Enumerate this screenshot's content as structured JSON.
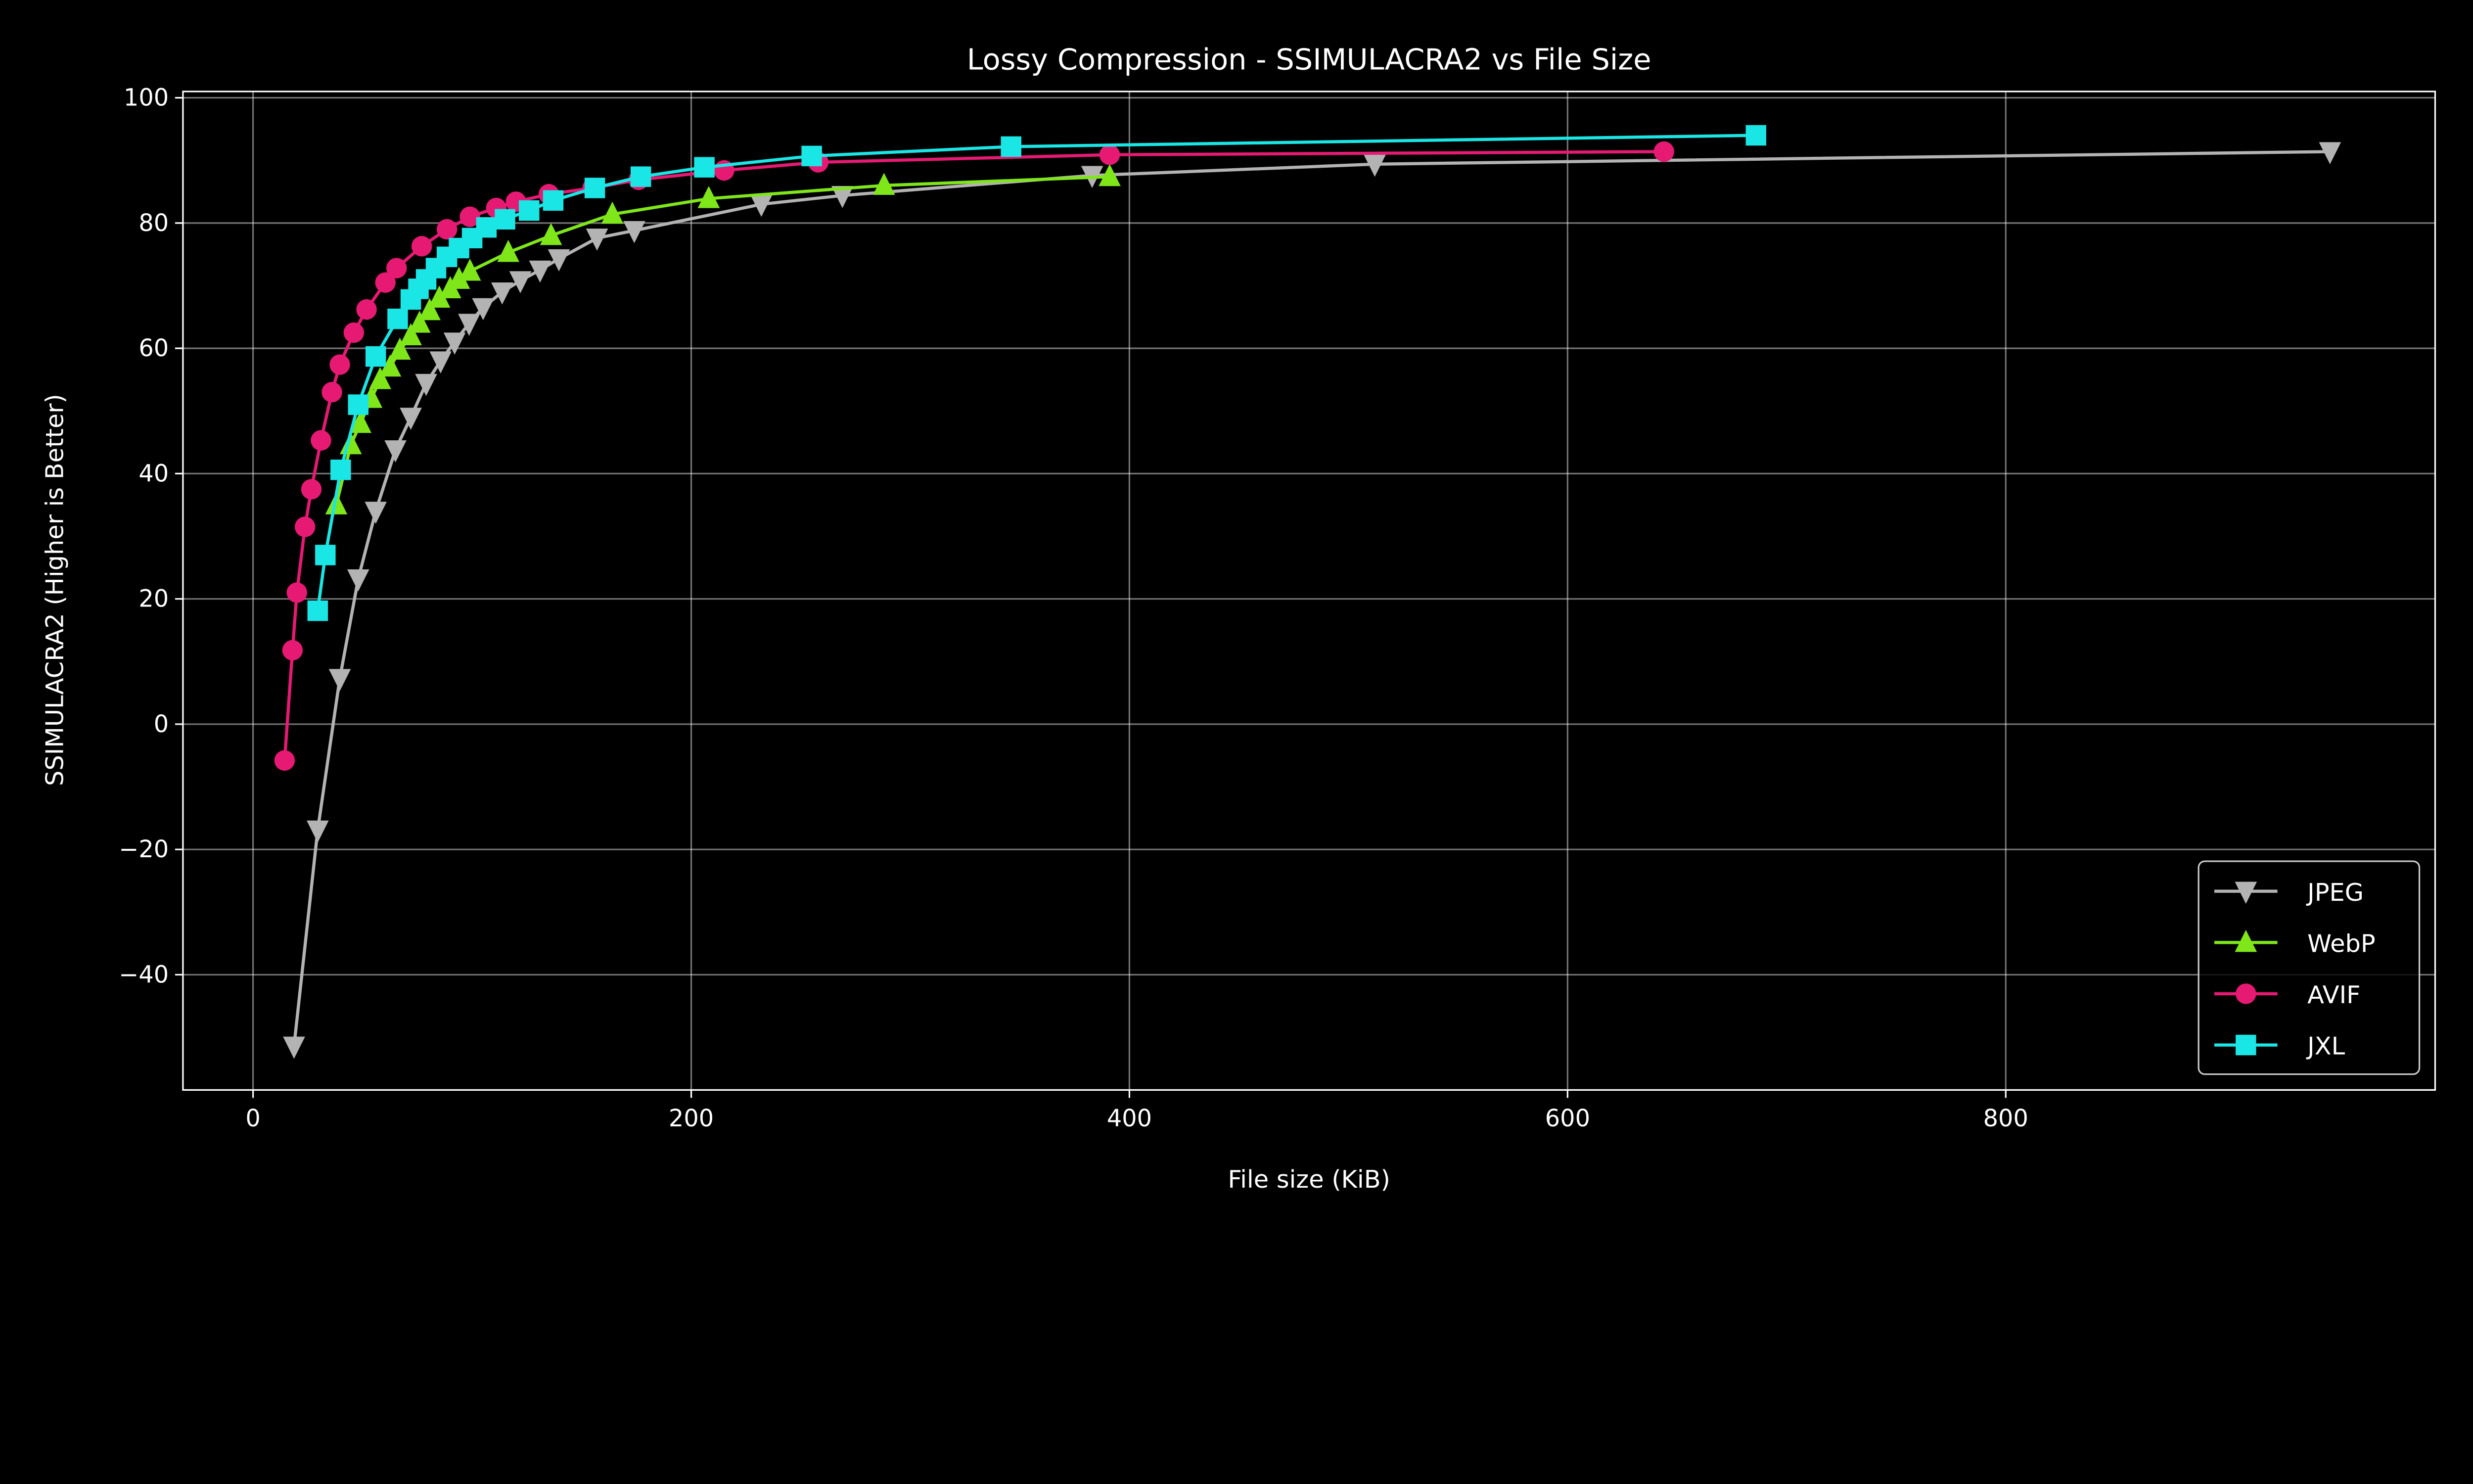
{
  "chart_data": {
    "type": "line",
    "title": "Lossy Compression - SSIMULACRA2 vs File Size",
    "xlabel": "File size (KiB)",
    "ylabel": "SSIMULACRA2 (Higher is Better)",
    "xlim": [
      -32,
      996
    ],
    "ylim": [
      -58.4,
      101
    ],
    "grid": true,
    "legend_position": "lower-right",
    "background": "#000000",
    "x_ticks": [
      {
        "value": 0,
        "label": "0"
      },
      {
        "value": 200,
        "label": "200"
      },
      {
        "value": 400,
        "label": "400"
      },
      {
        "value": 600,
        "label": "600"
      },
      {
        "value": 800,
        "label": "800"
      }
    ],
    "y_ticks": [
      {
        "value": -40,
        "label": "−40"
      },
      {
        "value": -20,
        "label": "−20"
      },
      {
        "value": 0,
        "label": "0"
      },
      {
        "value": 20,
        "label": "20"
      },
      {
        "value": 40,
        "label": "40"
      },
      {
        "value": 60,
        "label": "60"
      },
      {
        "value": 80,
        "label": "80"
      },
      {
        "value": 100,
        "label": "100"
      }
    ],
    "series": [
      {
        "name": "JPEG",
        "color": "#b3b3b3",
        "marker": "triangle-down",
        "x": [
          18.7,
          29.5,
          39.6,
          48,
          56,
          65,
          72,
          79,
          85.6,
          92,
          98.6,
          105,
          113.7,
          122,
          131,
          139.6,
          157,
          174,
          232,
          269,
          383,
          512,
          948
        ],
        "y": [
          -51.4,
          -16.9,
          7.3,
          23.2,
          34,
          43.8,
          49,
          54.4,
          58,
          61,
          64,
          66.5,
          69,
          70.8,
          72.5,
          74.3,
          77.6,
          78.8,
          83,
          84.4,
          87.6,
          89.4,
          91.4
        ]
      },
      {
        "name": "WebP",
        "color": "#7fe61a",
        "marker": "triangle-up",
        "x": [
          38,
          44.6,
          49,
          54,
          58,
          62.6,
          67,
          72,
          76,
          80.6,
          85,
          90,
          94,
          99,
          116.5,
          136,
          164,
          208,
          288,
          391
        ],
        "y": [
          35,
          44.6,
          48,
          52,
          55,
          57,
          59.7,
          62,
          64,
          66,
          68,
          69.5,
          71,
          72.3,
          75.3,
          78,
          81.4,
          83.9,
          86,
          87.4
        ]
      },
      {
        "name": "AVIF",
        "color": "#e61a73",
        "marker": "circle",
        "x": [
          14.4,
          18,
          20,
          23.7,
          26.6,
          31,
          36,
          39.6,
          46,
          51.8,
          60.4,
          65.5,
          77,
          88.5,
          99,
          111,
          120,
          135,
          155,
          176,
          215,
          258,
          391,
          644
        ],
        "y": [
          -5.8,
          11.8,
          21,
          31.5,
          37.5,
          45.3,
          53,
          57.4,
          62.5,
          66.2,
          70.5,
          72.8,
          76.3,
          79,
          81,
          82.4,
          83.4,
          84.6,
          85.6,
          86.9,
          88.4,
          89.7,
          90.9,
          91.4
        ]
      },
      {
        "name": "JXL",
        "color": "#1ae6e6",
        "marker": "square",
        "x": [
          29.5,
          33,
          40,
          48,
          56,
          66,
          72,
          75.5,
          79,
          83.5,
          88.5,
          94,
          100,
          106.5,
          115,
          126,
          137,
          156,
          177,
          206,
          255,
          346,
          686
        ],
        "y": [
          18.1,
          27,
          40.6,
          51,
          58.7,
          64.7,
          67.8,
          69.5,
          71,
          72.8,
          74.6,
          76,
          77.6,
          79.3,
          80.6,
          82,
          83.6,
          85.6,
          87.4,
          88.9,
          90.7,
          92.2,
          94
        ]
      }
    ]
  }
}
